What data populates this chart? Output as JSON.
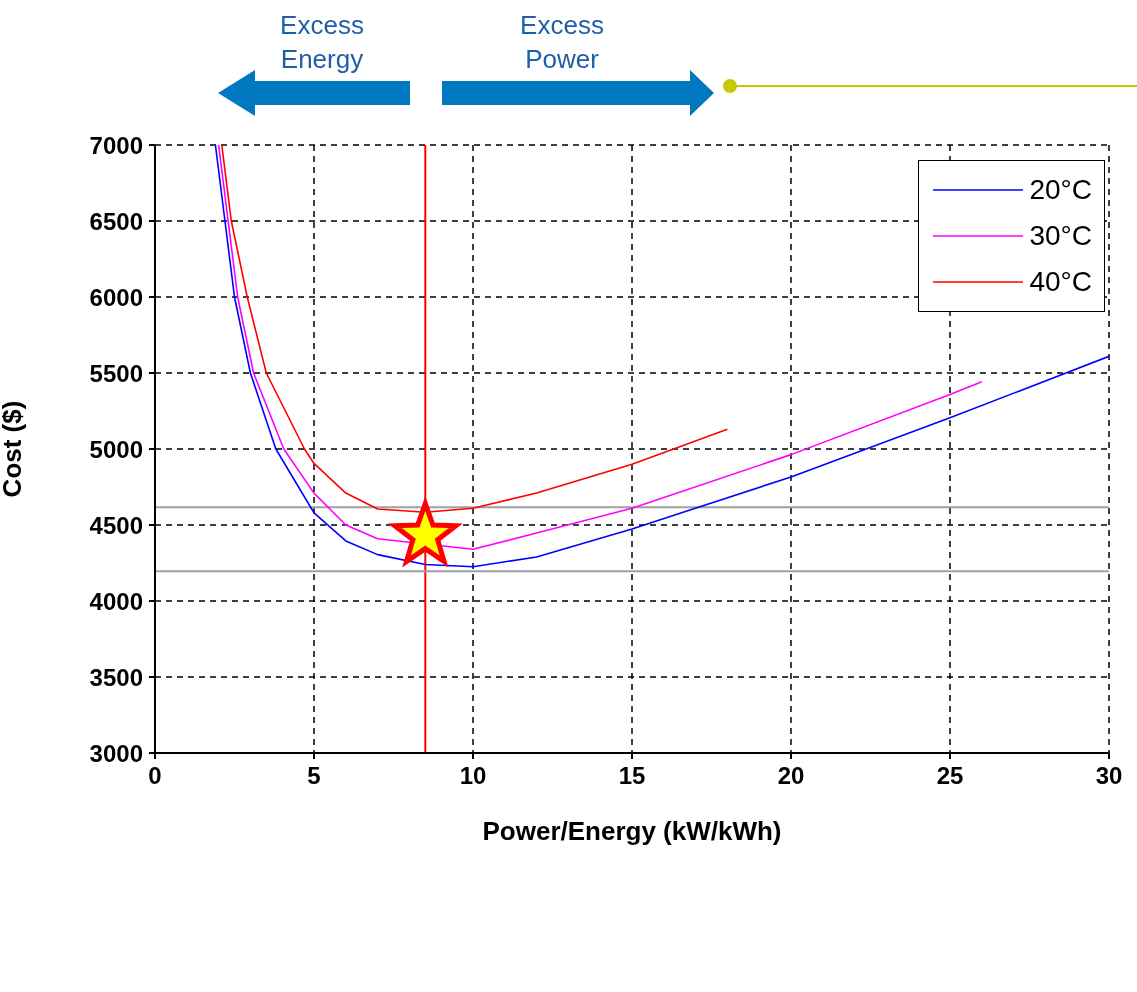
{
  "chart_data": {
    "type": "line",
    "xlabel": "Power/Energy (kW/kWh)",
    "ylabel": "Cost ($)",
    "xlim": [
      0,
      30
    ],
    "xticks": [
      0,
      5,
      10,
      15,
      20,
      25,
      30
    ],
    "ylim": [
      3000,
      7000
    ],
    "yticks": [
      3000,
      3500,
      4000,
      4500,
      5000,
      5500,
      6000,
      6500,
      7000
    ],
    "grid": true,
    "legend": "top right",
    "marker": "none",
    "line_style": "solid",
    "series": [
      {
        "name": "20°C",
        "color": "#0000ff",
        "x": [
          1.9,
          2.2,
          2.5,
          3,
          3.8,
          5,
          6,
          7,
          8.5,
          10,
          12,
          15,
          20,
          25,
          30
        ],
        "values": [
          7000,
          6500,
          6000,
          5500,
          5000,
          4580,
          4395,
          4305,
          4240,
          4225,
          4290,
          4474,
          4816,
          5205,
          5610
        ]
      },
      {
        "name": "30°C",
        "color": "#ff00ff",
        "x": [
          2,
          2.3,
          2.6,
          3.1,
          4.05,
          5,
          6,
          7,
          10,
          12,
          15,
          20,
          25,
          26
        ],
        "values": [
          7000,
          6500,
          6000,
          5500,
          5000,
          4710,
          4500,
          4410,
          4340,
          4447,
          4610,
          4963,
          5358,
          5442
        ]
      },
      {
        "name": "40°C",
        "color": "#ff0000",
        "x": [
          2.1,
          2.4,
          2.9,
          3.5,
          4.7,
          5,
          6,
          7,
          8.5,
          10,
          12,
          15,
          18
        ],
        "values": [
          7000,
          6500,
          6000,
          5500,
          5000,
          4905,
          4710,
          4605,
          4584,
          4610,
          4710,
          4900,
          5130
        ]
      },
      {
        "type": "scatter",
        "marker": "star",
        "color": "#ffff00",
        "x": [
          8.5
        ],
        "values": [
          4430
        ]
      }
    ],
    "ref_lines": [
      {
        "axis": "x",
        "value": 8.5,
        "color": "#ff0000"
      },
      {
        "axis": "y",
        "value": 4616,
        "color": "#a0a0a0"
      },
      {
        "axis": "y",
        "value": 4195,
        "color": "#a0a0a0"
      }
    ],
    "annotations": [
      "Excess\nEnergy",
      "Excess\nPower"
    ]
  }
}
